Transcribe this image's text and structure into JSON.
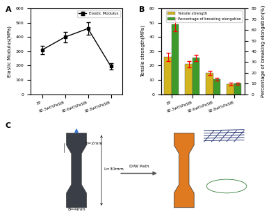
{
  "chart_data": [
    {
      "panel": "A",
      "type": "line",
      "categories": [
        "EP",
        "92.3wt%FeSiB",
        "92.6wt%FeSiB",
        "92.8wt%FeSiB"
      ],
      "y_label": "Elastic Modulus(MPa)",
      "ylim": [
        0,
        600
      ],
      "yticks": [
        0,
        100,
        200,
        300,
        400,
        500,
        600
      ],
      "legend": "upper right",
      "series": [
        {
          "name": "Elastic Modulus",
          "color": "#000000",
          "marker": "s",
          "line_style": "solid",
          "values": [
            310,
            400,
            460,
            195
          ],
          "errors": [
            30,
            35,
            45,
            20
          ]
        }
      ]
    },
    {
      "panel": "B",
      "type": "bar",
      "categories": [
        "EP",
        "92.3wt%FeSiB",
        "92.6wt%FeSiB",
        "92.8wt%FeSiB"
      ],
      "y_label": "Tensile strength(MPa)",
      "y2_label": "Percentage of breaking elongation(%)",
      "ylim": [
        0,
        60
      ],
      "yticks": [
        0,
        10,
        20,
        30,
        40,
        50,
        60
      ],
      "y2lim": [
        0,
        80
      ],
      "y2ticks": [
        0,
        10,
        20,
        30,
        40,
        50,
        60,
        70,
        80
      ],
      "legend": "upper right",
      "series": [
        {
          "name": "Tensile strength",
          "color": "#d2b41e",
          "values": [
            26,
            21,
            15,
            7
          ],
          "errors": [
            3,
            2,
            1.5,
            1
          ]
        },
        {
          "name": "Percentage of breaking elongation",
          "color": "#3e9b2a",
          "axis": "y2",
          "values": [
            65,
            34,
            14,
            10
          ],
          "errors": [
            6,
            3,
            1.5,
            1
          ]
        }
      ]
    }
  ],
  "diagram": {
    "panel": "C",
    "neck_label": "h=2mm",
    "length_label": "L=30mm",
    "width_label": "B=4mm",
    "arrow_label": "DIW Path"
  }
}
